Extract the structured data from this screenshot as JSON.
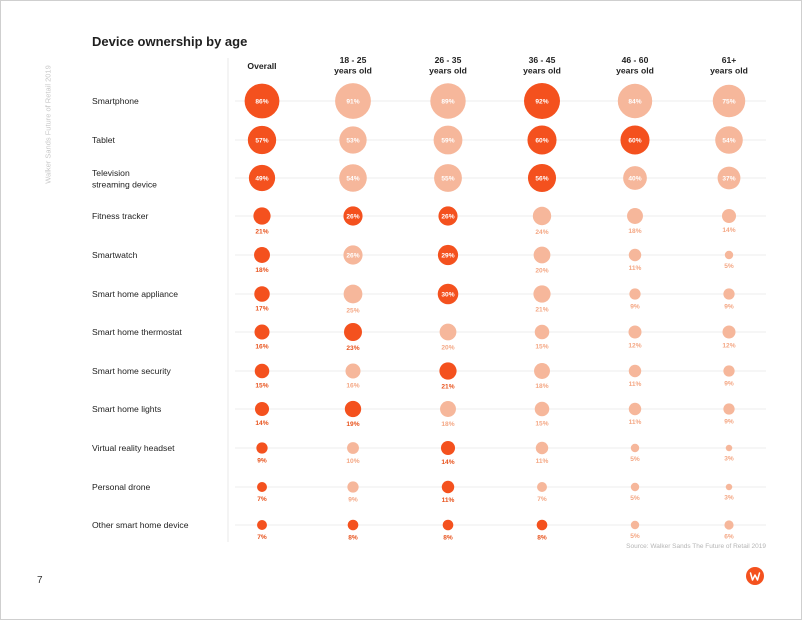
{
  "page": {
    "side_caption": "Walker Sands Future of Retail 2019",
    "page_number": "7",
    "source": "Source: Walker Sands The Future of Retail 2019"
  },
  "colors": {
    "dark": "#f4511e",
    "light": "#f6b79b",
    "dark_text": "#e8531d",
    "light_text": "#f4a784",
    "inside_text": "#ffffff"
  },
  "chart_data": {
    "type": "bubble_matrix",
    "title": "Device ownership by age",
    "columns": [
      "Overall",
      "18 - 25\nyears old",
      "26 - 35\nyears old",
      "36 - 45\nyears old",
      "46 - 60\nyears old",
      "61+\nyears old"
    ],
    "rows": [
      {
        "label": "Smartphone",
        "values": [
          86,
          91,
          89,
          92,
          84,
          75
        ],
        "highlight": [
          true,
          false,
          false,
          true,
          false,
          false
        ]
      },
      {
        "label": "Tablet",
        "values": [
          57,
          53,
          59,
          60,
          60,
          54
        ],
        "highlight": [
          true,
          false,
          false,
          true,
          true,
          false
        ]
      },
      {
        "label": "Television\nstreaming device",
        "values": [
          49,
          54,
          55,
          56,
          40,
          37
        ],
        "highlight": [
          true,
          false,
          false,
          true,
          false,
          false
        ]
      },
      {
        "label": "Fitness tracker",
        "values": [
          21,
          26,
          26,
          24,
          18,
          14
        ],
        "highlight": [
          true,
          true,
          true,
          false,
          false,
          false
        ]
      },
      {
        "label": "Smartwatch",
        "values": [
          18,
          26,
          29,
          20,
          11,
          5
        ],
        "highlight": [
          true,
          false,
          true,
          false,
          false,
          false
        ]
      },
      {
        "label": "Smart home appliance",
        "values": [
          17,
          25,
          30,
          21,
          9,
          9
        ],
        "highlight": [
          true,
          false,
          true,
          false,
          false,
          false
        ]
      },
      {
        "label": "Smart home thermostat",
        "values": [
          16,
          23,
          20,
          15,
          12,
          12
        ],
        "highlight": [
          true,
          true,
          false,
          false,
          false,
          false
        ]
      },
      {
        "label": "Smart home security",
        "values": [
          15,
          16,
          21,
          18,
          11,
          9
        ],
        "highlight": [
          true,
          false,
          true,
          false,
          false,
          false
        ]
      },
      {
        "label": "Smart home lights",
        "values": [
          14,
          19,
          18,
          15,
          11,
          9
        ],
        "highlight": [
          true,
          true,
          false,
          false,
          false,
          false
        ]
      },
      {
        "label": "Virtual reality headset",
        "values": [
          9,
          10,
          14,
          11,
          5,
          3
        ],
        "highlight": [
          true,
          false,
          true,
          false,
          false,
          false
        ]
      },
      {
        "label": "Personal drone",
        "values": [
          7,
          9,
          11,
          7,
          5,
          3
        ],
        "highlight": [
          true,
          false,
          true,
          false,
          false,
          false
        ]
      },
      {
        "label": "Other smart home device",
        "values": [
          7,
          8,
          8,
          8,
          5,
          6
        ],
        "highlight": [
          true,
          true,
          true,
          true,
          false,
          false
        ]
      }
    ],
    "value_suffix": "%"
  }
}
